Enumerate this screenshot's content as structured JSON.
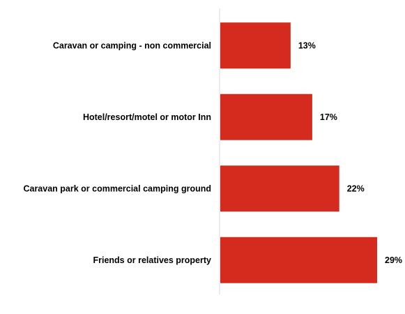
{
  "chart_data": {
    "type": "bar",
    "orientation": "horizontal",
    "categories": [
      "Caravan or camping - non commercial",
      "Hotel/resort/motel or motor Inn",
      "Caravan park or commercial camping ground",
      "Friends or relatives property"
    ],
    "values": [
      13,
      17,
      22,
      29
    ],
    "value_labels": [
      "13%",
      "17%",
      "22%",
      "29%"
    ],
    "unit": "%",
    "xlim": [
      0,
      31
    ],
    "grid": false,
    "legend": "none",
    "bar_color": "#d52b1e",
    "axis_color": "#d9d9d9"
  }
}
